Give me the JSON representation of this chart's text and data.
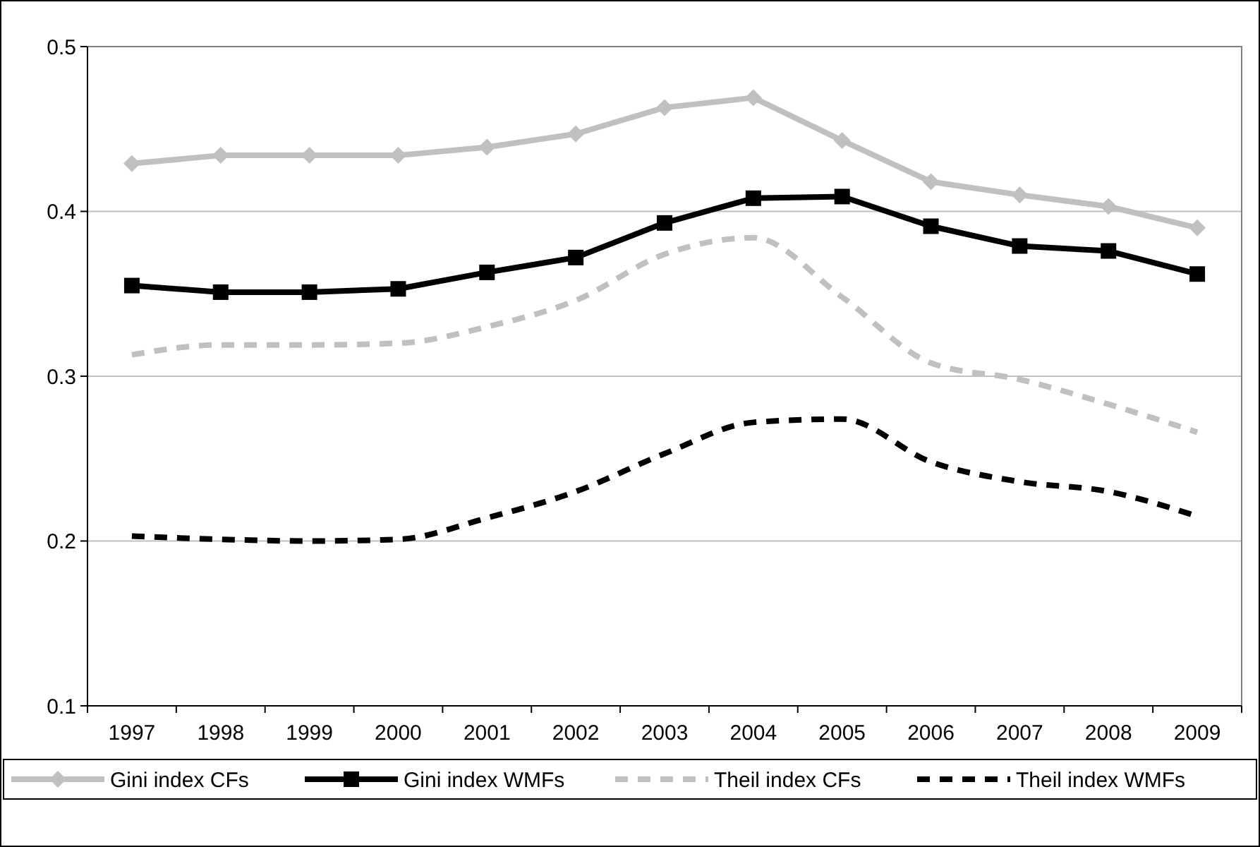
{
  "chart_data": {
    "type": "line",
    "categories": [
      "1997",
      "1998",
      "1999",
      "2000",
      "2001",
      "2002",
      "2003",
      "2004",
      "2005",
      "2006",
      "2007",
      "2008",
      "2009"
    ],
    "series": [
      {
        "name": "Gini index CFs",
        "color": "#c0c0c0",
        "marker": "diamond",
        "line_style": "solid",
        "values": [
          0.429,
          0.434,
          0.434,
          0.434,
          0.439,
          0.447,
          0.463,
          0.469,
          0.443,
          0.418,
          0.41,
          0.403,
          0.39
        ]
      },
      {
        "name": "Gini index WMFs",
        "color": "#000000",
        "marker": "square",
        "line_style": "solid",
        "values": [
          0.355,
          0.351,
          0.351,
          0.353,
          0.363,
          0.372,
          0.393,
          0.408,
          0.409,
          0.391,
          0.379,
          0.376,
          0.362
        ]
      },
      {
        "name": "Theil index CFs",
        "color": "#c0c0c0",
        "marker": "none",
        "line_style": "dashed",
        "values": [
          0.313,
          0.319,
          0.319,
          0.32,
          0.33,
          0.346,
          0.374,
          0.384,
          0.348,
          0.308,
          0.298,
          0.283,
          0.266
        ]
      },
      {
        "name": "Theil index WMFs",
        "color": "#000000",
        "marker": "none",
        "line_style": "dashed",
        "values": [
          0.203,
          0.201,
          0.2,
          0.201,
          0.214,
          0.23,
          0.253,
          0.272,
          0.274,
          0.248,
          0.236,
          0.23,
          0.215
        ]
      }
    ],
    "ylim": [
      0.1,
      0.5
    ],
    "yticks": [
      0.1,
      0.2,
      0.3,
      0.4,
      0.5
    ],
    "grid": "y",
    "legend": "bottom"
  }
}
